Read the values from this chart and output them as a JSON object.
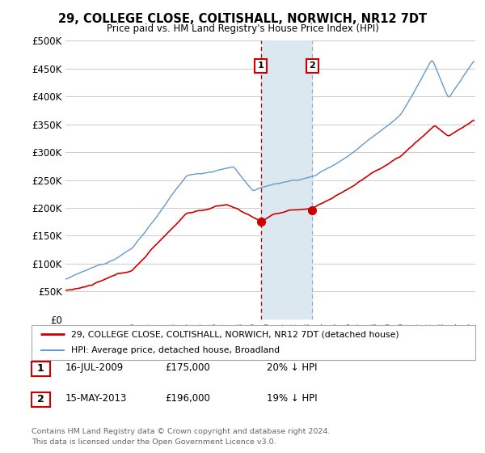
{
  "title": "29, COLLEGE CLOSE, COLTISHALL, NORWICH, NR12 7DT",
  "subtitle": "Price paid vs. HM Land Registry's House Price Index (HPI)",
  "yticks_labels": [
    "£0",
    "£50K",
    "£100K",
    "£150K",
    "£200K",
    "£250K",
    "£300K",
    "£350K",
    "£400K",
    "£450K",
    "£500K"
  ],
  "yticks_values": [
    0,
    50000,
    100000,
    150000,
    200000,
    250000,
    300000,
    350000,
    400000,
    450000,
    500000
  ],
  "ylim": [
    0,
    500000
  ],
  "xlim_start": 1995.0,
  "xlim_end": 2025.5,
  "marker1_x": 2009.54,
  "marker1_y": 175000,
  "marker1_label": "1",
  "marker1_date": "16-JUL-2009",
  "marker1_price": "£175,000",
  "marker1_hpi": "20% ↓ HPI",
  "marker2_x": 2013.37,
  "marker2_y": 196000,
  "marker2_label": "2",
  "marker2_date": "15-MAY-2013",
  "marker2_price": "£196,000",
  "marker2_hpi": "19% ↓ HPI",
  "legend_line1": "29, COLLEGE CLOSE, COLTISHALL, NORWICH, NR12 7DT (detached house)",
  "legend_line2": "HPI: Average price, detached house, Broadland",
  "footer": "Contains HM Land Registry data © Crown copyright and database right 2024.\nThis data is licensed under the Open Government Licence v3.0.",
  "line_red_color": "#cc0000",
  "line_blue_color": "#6699cc",
  "shade_color": "#dce8f0",
  "grid_color": "#cccccc",
  "background_color": "#ffffff",
  "marker1_vline_color": "#cc0000",
  "marker2_vline_color": "#8ab0cc"
}
